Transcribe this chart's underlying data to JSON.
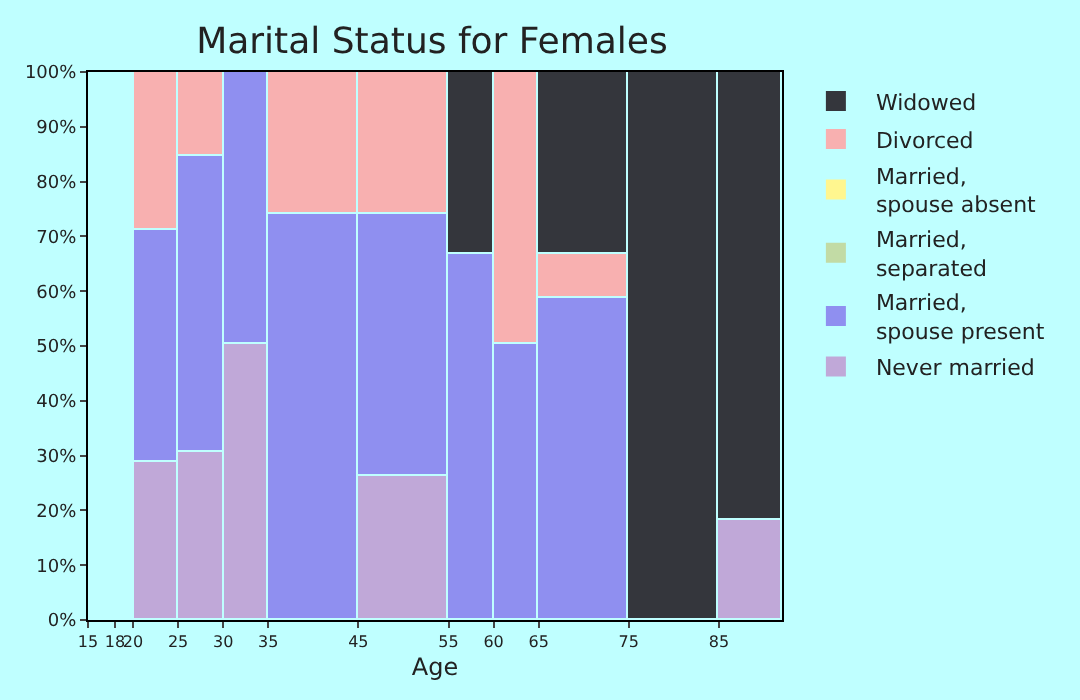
{
  "chart_data": {
    "type": "bar",
    "stacked": true,
    "title": "Marital Status for Females",
    "xlabel": "Age",
    "x": [
      22.5,
      27.5,
      32.5,
      40,
      50,
      57.5,
      62.5,
      70,
      80,
      88.5
    ],
    "xlim": [
      15,
      92
    ],
    "xticks": [
      15,
      18,
      20,
      25,
      30,
      35,
      45,
      55,
      60,
      65,
      75,
      85
    ],
    "ylim": [
      0,
      100
    ],
    "yticks": [
      {
        "value": 0,
        "label": "0%"
      },
      {
        "value": 10,
        "label": "10%"
      },
      {
        "value": 20,
        "label": "20%"
      },
      {
        "value": 30,
        "label": "30%"
      },
      {
        "value": 40,
        "label": "40%"
      },
      {
        "value": 50,
        "label": "50%"
      },
      {
        "value": 60,
        "label": "60%"
      },
      {
        "value": 70,
        "label": "70%"
      },
      {
        "value": 80,
        "label": "80%"
      },
      {
        "value": 90,
        "label": "90%"
      },
      {
        "value": 100,
        "label": "100%"
      }
    ],
    "grid": false,
    "legend": "right",
    "series": [
      {
        "name": "Never married",
        "color": "#c0a8d8",
        "values": [
          28.7,
          30.8,
          50.2,
          null,
          26.4,
          null,
          null,
          null,
          null,
          18.3
        ]
      },
      {
        "name": "Married, spouse present",
        "color": "#8f8ff0",
        "values": [
          42.6,
          53.9,
          49.8,
          74.1,
          47.7,
          66.7,
          50.2,
          58.7,
          null,
          null
        ]
      },
      {
        "name": "Married, separated",
        "color": "#c2dba5",
        "values": [
          null,
          null,
          null,
          null,
          null,
          null,
          null,
          null,
          null,
          null
        ]
      },
      {
        "name": "Married, spouse absent",
        "color": "#fff68f",
        "values": [
          null,
          null,
          null,
          null,
          null,
          null,
          null,
          null,
          null,
          null
        ]
      },
      {
        "name": "Divorced",
        "color": "#f8b0b0",
        "values": [
          28.7,
          15.3,
          null,
          25.9,
          25.9,
          null,
          49.8,
          8.0,
          null,
          null
        ]
      },
      {
        "name": "Widowed",
        "color": "#34363c",
        "values": [
          null,
          null,
          null,
          null,
          null,
          33.3,
          null,
          33.3,
          100,
          81.7
        ]
      }
    ]
  }
}
